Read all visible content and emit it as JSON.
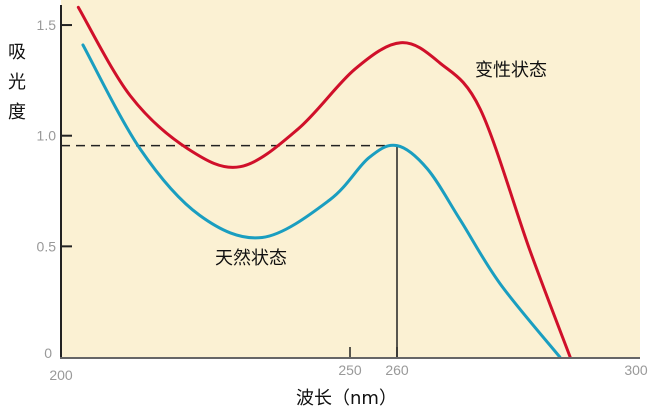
{
  "chart_data": {
    "type": "line",
    "title": "",
    "xlabel": "波长（nm）",
    "ylabel": "吸光度",
    "xlim": [
      200,
      300
    ],
    "ylim": [
      0,
      1.6
    ],
    "x_ticks": [
      {
        "v": 200,
        "label": "200"
      },
      {
        "v": 250,
        "label": "250"
      },
      {
        "v": 260,
        "label": "260",
        "highlight": true
      },
      {
        "v": 300,
        "label": "300"
      }
    ],
    "y_ticks": [
      {
        "v": 0,
        "label": "0"
      },
      {
        "v": 0.5,
        "label": "0.5"
      },
      {
        "v": 1.0,
        "label": "1.0"
      },
      {
        "v": 1.5,
        "label": "1.5"
      }
    ],
    "grid": false,
    "series": [
      {
        "name": "变性状态",
        "color": "#d0102a",
        "x": [
          203,
          212,
          222,
          231,
          241,
          251,
          260.6,
          267,
          273.7,
          281.9,
          288.5
        ],
        "y": [
          1.58,
          1.18,
          0.94,
          0.86,
          1.03,
          1.3,
          1.42,
          1.33,
          1.12,
          0.48,
          0
        ]
      },
      {
        "name": "天然状态",
        "color": "#1a9ec0",
        "x": [
          203.8,
          213.7,
          224,
          234.8,
          246.5,
          254,
          260,
          265,
          270.4,
          277,
          286.8
        ],
        "y": [
          1.41,
          0.94,
          0.64,
          0.54,
          0.71,
          0.9,
          0.955,
          0.85,
          0.62,
          0.33,
          0
        ]
      }
    ],
    "annotations": {
      "peak_wavelength": 260,
      "peak_absorbance": 0.955,
      "highlight_color": "#f08050"
    }
  }
}
